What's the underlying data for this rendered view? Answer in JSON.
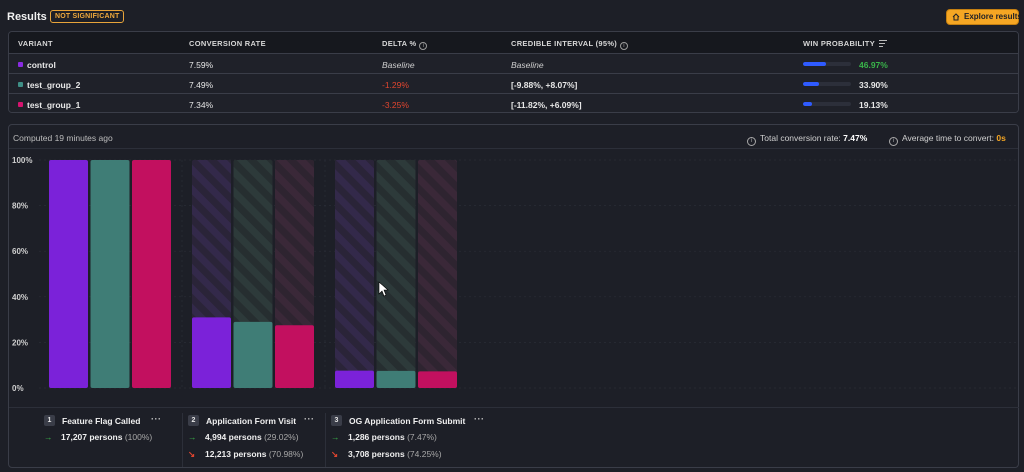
{
  "header": {
    "title": "Results",
    "badge": "NOT SIGNIFICANT",
    "explore_button": "Explore results",
    "explore_icon": "home-icon"
  },
  "table": {
    "columns": {
      "variant": "VARIANT",
      "conversion_rate": "CONVERSION RATE",
      "delta": "DELTA %",
      "credible_interval": "CREDIBLE INTERVAL (95%)",
      "win_probability": "WIN PROBABILITY"
    },
    "rows": [
      {
        "variant": "control",
        "color": "#8a2be2",
        "conversion_rate": "7.59%",
        "delta": "Baseline",
        "interval": "Baseline",
        "win_probability": "46.97%",
        "win_fraction": 0.4697
      },
      {
        "variant": "test_group_2",
        "color": "#3f8f86",
        "conversion_rate": "7.49%",
        "delta": "-1.29%",
        "interval": "[-9.88%, +8.07%]",
        "win_probability": "33.90%",
        "win_fraction": 0.339
      },
      {
        "variant": "test_group_1",
        "color": "#d6136f",
        "conversion_rate": "7.34%",
        "delta": "-3.25%",
        "interval": "[-11.82%, +6.09%]",
        "win_probability": "19.13%",
        "win_fraction": 0.1913
      }
    ]
  },
  "funnel": {
    "computed": "Computed 19 minutes ago",
    "total_label": "Total conversion rate:",
    "total_value": "7.47%",
    "avg_label": "Average time to convert:",
    "avg_value": "0s",
    "colors": [
      "#7b22d9",
      "#3f7d76",
      "#c2105f"
    ],
    "steps": [
      {
        "num": "1",
        "title": "Feature Flag Called",
        "converted": "17,207 persons",
        "converted_pct": "(100%)",
        "dropped": "",
        "dropped_pct": ""
      },
      {
        "num": "2",
        "title": "Application Form Visit",
        "converted": "4,994 persons",
        "converted_pct": "(29.02%)",
        "dropped": "12,213 persons",
        "dropped_pct": "(70.98%)"
      },
      {
        "num": "3",
        "title": "OG Application Form Submit",
        "converted": "1,286 persons",
        "converted_pct": "(7.47%)",
        "dropped": "3,708 persons",
        "dropped_pct": "(74.25%)"
      }
    ]
  },
  "chart_data": {
    "type": "bar",
    "y_ticks": [
      "100%",
      "80%",
      "60%",
      "40%",
      "20%",
      "0%"
    ],
    "ylim": [
      0,
      100
    ],
    "categories": [
      "Feature Flag Called",
      "Application Form Visit",
      "OG Application Form Submit"
    ],
    "series": [
      {
        "name": "control",
        "values": [
          100,
          31,
          7.6
        ]
      },
      {
        "name": "test_group_2",
        "values": [
          100,
          29,
          7.5
        ]
      },
      {
        "name": "test_group_1",
        "values": [
          100,
          27.5,
          7.3
        ]
      }
    ]
  }
}
